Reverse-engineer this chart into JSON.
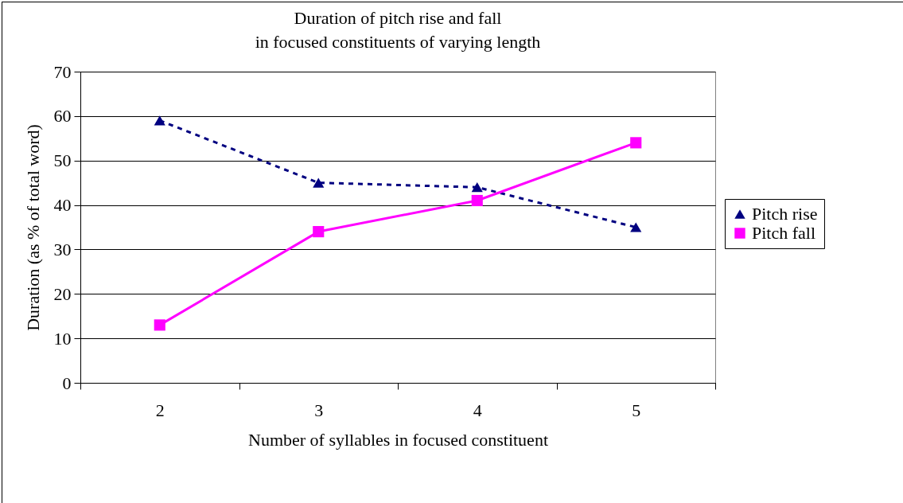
{
  "chart_data": {
    "type": "line",
    "title": "Duration of pitch rise and fall",
    "subtitle": "in focused constituents of varying length",
    "xlabel": "Number of syllables in focused constituent",
    "ylabel": "Duration (as % of total word)",
    "categories": [
      "2",
      "3",
      "4",
      "5"
    ],
    "ylim": [
      0,
      70
    ],
    "yticks": [
      0,
      10,
      20,
      30,
      40,
      50,
      60,
      70
    ],
    "grid": "y",
    "legend": "right",
    "series": [
      {
        "name": "Pitch rise",
        "color": "#000080",
        "values": [
          59,
          45,
          44,
          35
        ],
        "marker": "triangle",
        "line_style": "dashed"
      },
      {
        "name": "Pitch fall",
        "color": "#ff00ff",
        "values": [
          13,
          34,
          41,
          54
        ],
        "marker": "square",
        "line_style": "solid"
      }
    ]
  }
}
